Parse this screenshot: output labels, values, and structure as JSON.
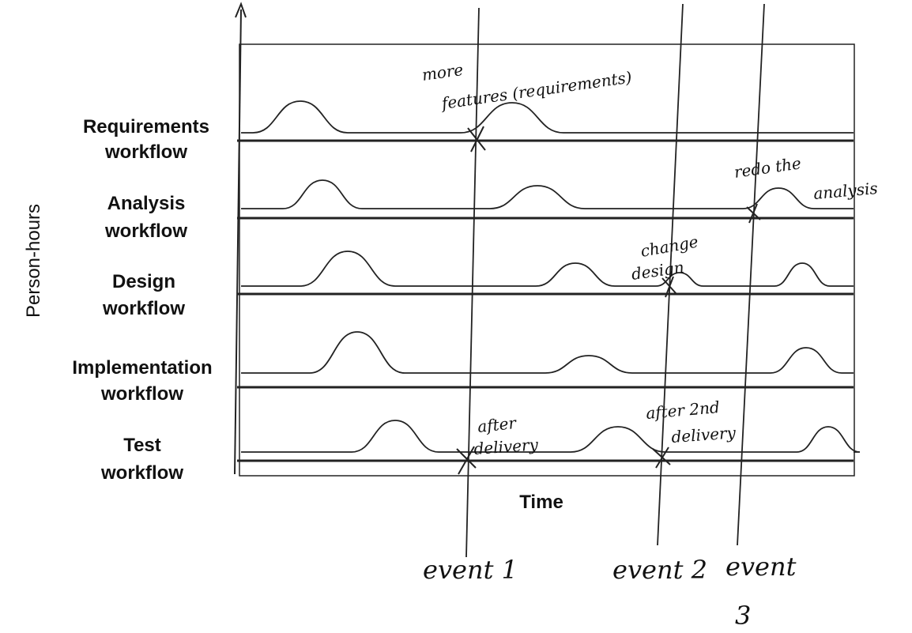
{
  "axes": {
    "y_label": "Person-hours",
    "x_label": "Time"
  },
  "rows": [
    {
      "label": [
        "Requirements",
        "workflow"
      ]
    },
    {
      "label": [
        "Analysis",
        "workflow"
      ]
    },
    {
      "label": [
        "Design",
        "workflow"
      ]
    },
    {
      "label": [
        "Implementation",
        "workflow"
      ]
    },
    {
      "label": [
        "Test",
        "workflow"
      ]
    }
  ],
  "annotations": [
    {
      "lines": [
        "more",
        "features (requirements)"
      ]
    },
    {
      "lines": [
        "redo the",
        "analysis"
      ]
    },
    {
      "lines": [
        "change",
        "design"
      ]
    },
    {
      "lines": [
        "after",
        "delivery"
      ]
    },
    {
      "lines": [
        "after 2nd",
        "delivery"
      ]
    }
  ],
  "events": [
    {
      "lines": [
        "event 1"
      ]
    },
    {
      "lines": [
        "event 2"
      ]
    },
    {
      "lines": [
        "event",
        "3"
      ]
    }
  ]
}
